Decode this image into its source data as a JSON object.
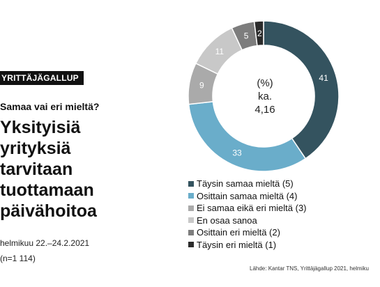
{
  "badge": "YRITTÄJÄGALLUP",
  "question": "Samaa vai eri mieltä?",
  "headline": [
    "Yksityisiä",
    "yrityksiä",
    "tarvitaan",
    "tuottamaan",
    "päivähoitoa"
  ],
  "survey_period": "helmikuu 22.–24.2.2021",
  "sample_size": "(n=1 114)",
  "source": "Lähde: Kantar TNS, Yrittäjägallup 2021, helmiku",
  "chart_data": {
    "type": "pie",
    "donut": true,
    "unit": "(%)",
    "center_label": [
      "(%)",
      "ka.",
      "4,16"
    ],
    "slices": [
      {
        "label": "Täysin samaa mieltä (5)",
        "value": 41,
        "color": "#34535f"
      },
      {
        "label": "Osittain samaa mieltä (4)",
        "value": 33,
        "color": "#6aadca"
      },
      {
        "label": "Ei samaa eikä eri mieltä (3)",
        "value": 9,
        "color": "#aaaaaa"
      },
      {
        "label": "En osaa sanoa",
        "value": 11,
        "color": "#c8c8c8"
      },
      {
        "label": "Osittain eri mieltä (2)",
        "value": 5,
        "color": "#7d7d7d"
      },
      {
        "label": "Täysin eri mieltä (1)",
        "value": 2,
        "color": "#2b2b2b"
      }
    ],
    "legend_position": "bottom"
  }
}
